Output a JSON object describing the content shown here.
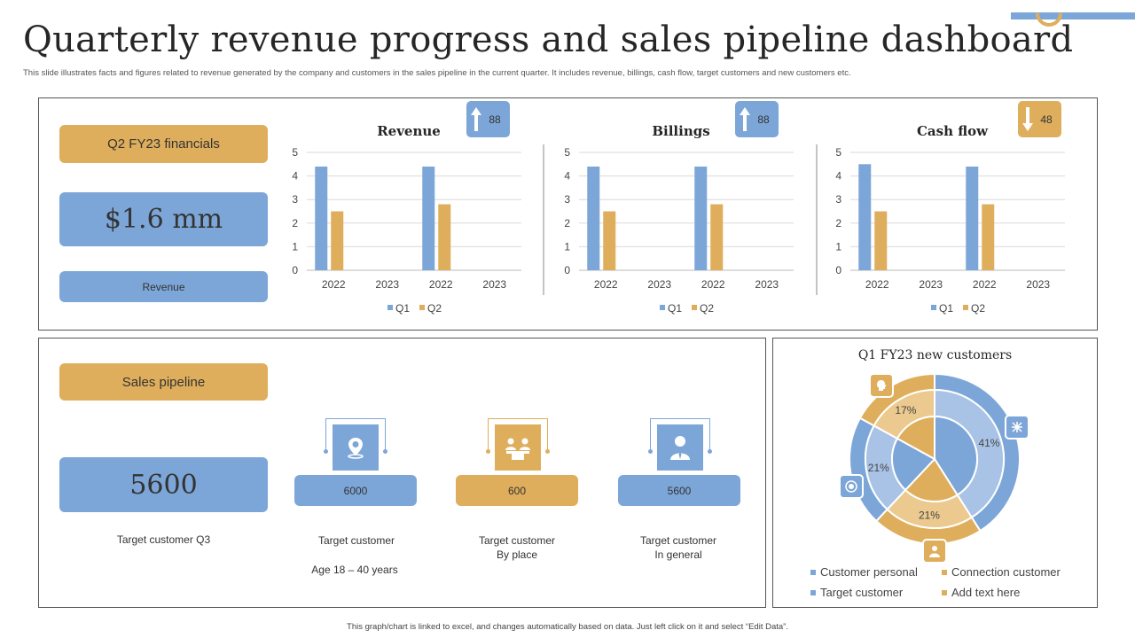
{
  "header": {
    "title": "Quarterly revenue progress and sales pipeline dashboard",
    "subtitle": "This slide illustrates facts and figures related to revenue generated by the company and customers in the sales pipeline in the current quarter. It includes revenue, billings, cash flow, target customers and new customers etc."
  },
  "financials": {
    "label": "Q2 FY23 financials",
    "amount": "$1.6 mm",
    "amount_label": "Revenue"
  },
  "pipeline": {
    "label": "Sales pipeline",
    "amount": "5600",
    "caption": "Target  customer Q3",
    "stats": [
      {
        "value": "6000",
        "caption": "Target  customer",
        "sub": "Age 18 – 40 years",
        "icon": "location-pin-icon"
      },
      {
        "value": "600",
        "caption": "Target  customer\nBy place",
        "icon": "group-meeting-icon"
      },
      {
        "value": "5600",
        "caption": "Target  customer\nIn general",
        "icon": "businessman-icon"
      }
    ]
  },
  "footer": "This graph/chart is linked to excel, and changes automatically based on data. Just left click on it and select “Edit Data”.",
  "colors": {
    "blue": "#7da6d8",
    "gold": "#dfae5c",
    "light_blue": "#a9c3e6",
    "light_gold": "#ebc98f"
  },
  "chart_data": [
    {
      "type": "bar",
      "title": "Revenue",
      "badge": {
        "value": "88",
        "direction": "up",
        "icon": "arrow-up-icon"
      },
      "categories": [
        "2022",
        "2023",
        "2022",
        "2023"
      ],
      "series": [
        {
          "name": "Q1",
          "values": [
            4.4,
            null,
            4.4,
            null
          ]
        },
        {
          "name": "Q2",
          "values": [
            2.5,
            null,
            2.8,
            null
          ]
        }
      ],
      "ylim": [
        0,
        5
      ],
      "yticks": [
        0,
        1,
        2,
        3,
        4,
        5
      ],
      "grid": true,
      "legend": "bottom"
    },
    {
      "type": "bar",
      "title": "Billings",
      "badge": {
        "value": "88",
        "direction": "up",
        "icon": "arrow-up-icon"
      },
      "categories": [
        "2022",
        "2023",
        "2022",
        "2023"
      ],
      "series": [
        {
          "name": "Q1",
          "values": [
            4.4,
            null,
            4.4,
            null
          ]
        },
        {
          "name": "Q2",
          "values": [
            2.5,
            null,
            2.8,
            null
          ]
        }
      ],
      "ylim": [
        0,
        5
      ],
      "yticks": [
        0,
        1,
        2,
        3,
        4,
        5
      ],
      "grid": true,
      "legend": "bottom"
    },
    {
      "type": "bar",
      "title": "Cash flow",
      "badge": {
        "value": "48",
        "direction": "down",
        "icon": "arrow-down-icon"
      },
      "categories": [
        "2022",
        "2023",
        "2022",
        "2023"
      ],
      "series": [
        {
          "name": "Q1",
          "values": [
            4.5,
            null,
            4.4,
            null
          ]
        },
        {
          "name": "Q2",
          "values": [
            2.5,
            null,
            2.8,
            null
          ]
        }
      ],
      "ylim": [
        0,
        5
      ],
      "yticks": [
        0,
        1,
        2,
        3,
        4,
        5
      ],
      "grid": true,
      "legend": "bottom"
    },
    {
      "type": "pie",
      "title": "Q1 FY23 new customers",
      "categories": [
        "Customer personal",
        "Connection customer",
        "Target customer",
        "Add text here"
      ],
      "values": [
        41,
        21,
        21,
        17
      ],
      "labels": [
        "41%",
        "21%",
        "21%",
        "17%"
      ],
      "legend": "bottom"
    }
  ]
}
